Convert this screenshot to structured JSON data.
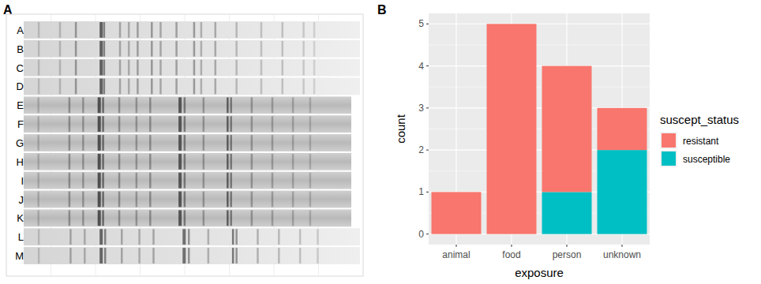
{
  "chart_data": [
    {
      "type": "gel",
      "panel_label": "A",
      "categories": [
        "A",
        "B",
        "C",
        "D",
        "E",
        "F",
        "G",
        "H",
        "I",
        "J",
        "K",
        "L",
        "M"
      ]
    },
    {
      "type": "bar",
      "panel_label": "B",
      "stacked": true,
      "grid": true,
      "legend": "right",
      "x_label": "exposure",
      "y_label": "count",
      "legend_title": "suscept_status",
      "categories": [
        "animal",
        "food",
        "person",
        "unknown"
      ],
      "series": [
        {
          "name": "resistant",
          "color": "#F8766D",
          "values": [
            1,
            5,
            3,
            1
          ]
        },
        {
          "name": "susceptible",
          "color": "#00BFC4",
          "values": [
            0,
            0,
            1,
            2
          ]
        }
      ],
      "ylim": [
        -0.25,
        5.25
      ],
      "yticks": [
        0,
        1,
        2,
        3,
        4,
        5
      ]
    }
  ]
}
